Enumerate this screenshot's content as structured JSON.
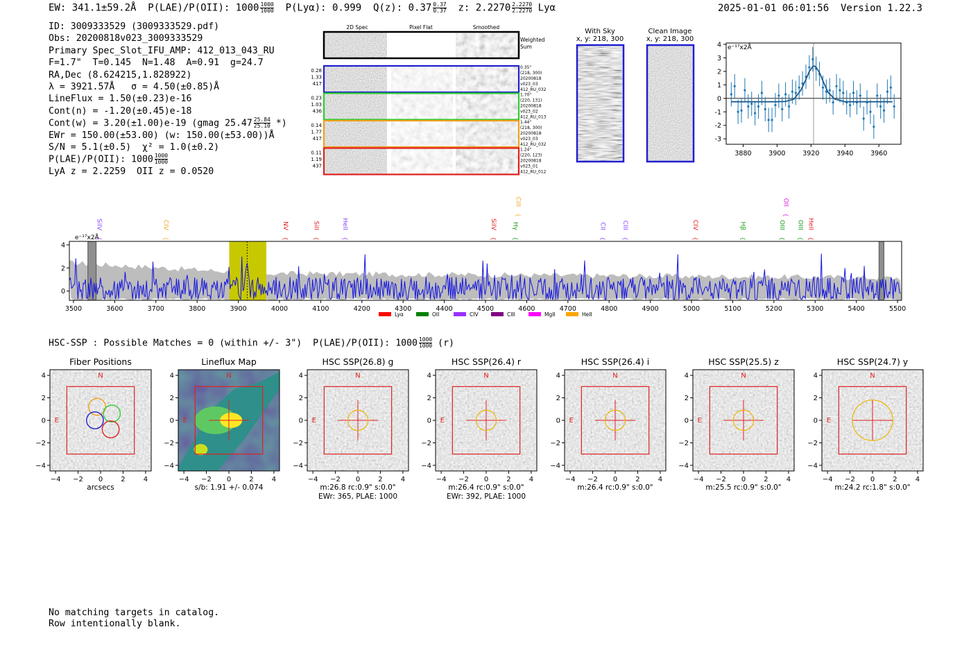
{
  "header": {
    "ew": "EW: 341.1±59.2Å",
    "plae_label": "P(LAE)/P(OII): 1000",
    "plae_num": "1000",
    "plae_den": "1000",
    "plya": "P(Lyα): 0.999",
    "qz": "Q(z): 0.37",
    "qz_num": "0.37",
    "qz_den": "0.37",
    "z": "z: 2.2270",
    "z_num": "2.2270",
    "z_den": "2.2270",
    "z_line": "Lyα",
    "timestamp": "2025-01-01 06:01:56  Version 1.22.3"
  },
  "info": {
    "id": "ID: 3009333529 (3009333529.pdf)",
    "obs": "Obs: 20200818v023_3009333529",
    "primary": "Primary Spec_Slot_IFU_AMP: 412_013_043_RU",
    "fiber": "F=1.7\"  T=0.145  N=1.48  A=0.91  g=24.7",
    "radec": "RA,Dec (8.624215,1.828922)",
    "lambda": "λ = 3921.57Å   σ = 4.50(±0.85)Å",
    "lineflux": "LineFlux = 1.50(±0.23)e-16",
    "contn": "Cont(n) = -1.20(±0.45)e-18",
    "contw": "Cont(w) = 3.20(±1.00)e-19 (gmag 25.47",
    "contw_num": "25.84",
    "contw_den": "25.10",
    "contw_end": "*)",
    "ewr": "EWr = 150.00(±53.00) (w: 150.00(±53.00))Å",
    "sn": "S/N = 5.1(±0.5)  χ² = 1.0(±0.2)",
    "plae": "P(LAE)/P(OII): 1000",
    "plae_num": "1000",
    "plae_den": "1000",
    "z": "LyA z = 2.2259  OII z = 0.0520"
  },
  "cutouts": {
    "col_2d": "2D Spec",
    "col_flat": "Pixel Flat",
    "col_smooth": "Smoothed",
    "weighted": "Weighted",
    "sum": "Sum",
    "rows": [
      {
        "w1": "0.28",
        "w2": "1.33",
        "w3": "417",
        "r1": "0.35\"",
        "r2": "(218, 300)",
        "r3": "20200818",
        "r4": "v023_03",
        "r5": "412_RU_032",
        "color": "#1f1fd0"
      },
      {
        "w1": "0.23",
        "w2": "1.03",
        "w3": "436",
        "r1": "1.70\"",
        "r2": "(220, 131)",
        "r3": "20200818",
        "r4": "v023_02",
        "r5": "412_RU_013",
        "color": "#2ecc2e"
      },
      {
        "w1": "0.14",
        "w2": "1.77",
        "w3": "417",
        "r1": "1.44\"",
        "r2": "(218, 300)",
        "r3": "20200818",
        "r4": "v023_03",
        "r5": "412_RU_032",
        "color": "#f0a020"
      },
      {
        "w1": "0.11",
        "w2": "1.19",
        "w3": "437",
        "r1": "1.24\"",
        "r2": "(220, 123)",
        "r3": "20200818",
        "r4": "v023_01",
        "r5": "412_RU_012",
        "color": "#e02020"
      }
    ],
    "withsky_title": "With Sky",
    "withsky_coords": "x, y: 218, 300",
    "clean_title": "Clean Image",
    "clean_coords": "x, y: 218, 300"
  },
  "chart_data": [
    {
      "type": "line",
      "title": "Emission line zoom",
      "ylabel": "e⁻¹⁷x2Å",
      "xlim": [
        3870,
        3973
      ],
      "ylim": [
        -3.4,
        4.1
      ],
      "xticks": [
        3880,
        3900,
        3920,
        3940,
        3960
      ],
      "yticks": [
        -3,
        -2,
        -1,
        0,
        1,
        2,
        3,
        4
      ],
      "series": [
        {
          "name": "data",
          "style": "errorbar",
          "x": [
            3873,
            3875,
            3877,
            3879,
            3881,
            3883,
            3885,
            3887,
            3889,
            3891,
            3893,
            3895,
            3897,
            3899,
            3901,
            3903,
            3905,
            3907,
            3909,
            3911,
            3913,
            3915,
            3917,
            3919,
            3921,
            3923,
            3925,
            3927,
            3929,
            3931,
            3933,
            3935,
            3937,
            3939,
            3941,
            3943,
            3945,
            3947,
            3949,
            3951,
            3953,
            3955,
            3957,
            3959,
            3961,
            3963,
            3965,
            3967,
            3969
          ],
          "y": [
            0.3,
            0.9,
            -1.0,
            -0.9,
            0.6,
            -0.6,
            -0.4,
            -1.1,
            -0.6,
            0.4,
            -0.8,
            -1.6,
            -1.6,
            -0.5,
            0.2,
            -0.8,
            0.3,
            -0.6,
            0.5,
            0.4,
            0.8,
            1.1,
            1.6,
            2.3,
            2.9,
            2.2,
            1.8,
            0.8,
            0.5,
            0.6,
            -0.3,
            0.9,
            0.6,
            0.4,
            -0.3,
            -0.5,
            0.4,
            -0.3,
            0.2,
            -1.5,
            -0.3,
            -1.0,
            -2.1,
            0.2,
            -0.6,
            -0.9,
            0.5,
            0.8,
            -0.6
          ]
        },
        {
          "name": "fit",
          "style": "line",
          "x": [
            3873,
            3900,
            3905,
            3910,
            3914,
            3917,
            3919,
            3921,
            3922,
            3923,
            3925,
            3927,
            3930,
            3934,
            3940,
            3968
          ],
          "y": [
            -0.25,
            -0.25,
            -0.23,
            -0.05,
            0.6,
            1.4,
            2.0,
            2.35,
            2.4,
            2.3,
            1.9,
            1.3,
            0.45,
            -0.05,
            -0.25,
            -0.25
          ]
        }
      ]
    },
    {
      "type": "line",
      "title": "Full spectrum",
      "ylabel": "e⁻¹⁷x2Å",
      "xlim": [
        3490,
        5510
      ],
      "ylim": [
        -0.8,
        4.3
      ],
      "xticks": [
        3500,
        3600,
        3700,
        3800,
        3900,
        4000,
        4100,
        4200,
        4300,
        4400,
        4500,
        4600,
        4700,
        4800,
        4900,
        5000,
        5100,
        5200,
        5300,
        5400,
        5500
      ],
      "yticks": [
        0,
        2,
        4
      ],
      "highlight_range": [
        3878,
        3968
      ],
      "masked_ranges": [
        [
          3535,
          3555
        ],
        [
          5455,
          5467
        ]
      ],
      "line_markers": [
        {
          "label": "SiIV",
          "x": 3553,
          "color": "#8e44ff"
        },
        {
          "label": "CIV",
          "x": 3715,
          "color": "#f5a623"
        },
        {
          "label": "NV",
          "x": 4005,
          "color": "#e02020"
        },
        {
          "label": "SiII",
          "x": 4080,
          "color": "#e02020"
        },
        {
          "label": "HeII",
          "x": 4150,
          "color": "#8e44ff"
        },
        {
          "label": "SiIV",
          "x": 4510,
          "color": "#e02020"
        },
        {
          "label": "CIII",
          "x": 4570,
          "color": "#f5a623"
        },
        {
          "label": "Hγ",
          "x": 4563,
          "color": "#1a9c1a"
        },
        {
          "label": "CII",
          "x": 4775,
          "color": "#8e44ff"
        },
        {
          "label": "CIII",
          "x": 4830,
          "color": "#8e44ff"
        },
        {
          "label": "CIV",
          "x": 5000,
          "color": "#e02020"
        },
        {
          "label": "Hβ",
          "x": 5115,
          "color": "#1a9c1a"
        },
        {
          "label": "OII",
          "x": 5220,
          "color": "#e020e0"
        },
        {
          "label": "OIII",
          "x": 5210,
          "color": "#1a9c1a"
        },
        {
          "label": "OIII",
          "x": 5255,
          "color": "#1a9c1a"
        },
        {
          "label": "HeII",
          "x": 5280,
          "color": "#e02020"
        }
      ],
      "legend": [
        {
          "label": "Lyα",
          "color": "#ff0000"
        },
        {
          "label": "OII",
          "color": "#008000"
        },
        {
          "label": "CIV",
          "color": "#9b30ff"
        },
        {
          "label": "CIII",
          "color": "#800080"
        },
        {
          "label": "MgII",
          "color": "#ff00ff"
        },
        {
          "label": "HeII",
          "color": "#ffa500"
        }
      ]
    }
  ],
  "hsc": {
    "line_label": "HSC-SSP : Possible Matches = 0 (within +/- 3\")  P(LAE)/P(OII): 1000",
    "line_num": "1000",
    "line_den": "1000",
    "line_end": "(r)",
    "panels": [
      {
        "title": "Fiber Positions",
        "cap1": "arcsecs",
        "cap2": "",
        "kind": "fiber"
      },
      {
        "title": "Lineflux Map",
        "cap1": "s/b: 1.91 +/- 0.074",
        "cap2": "",
        "kind": "flux"
      },
      {
        "title": "HSC SSP(26.8) g",
        "cap1": "m:26.8 rc:0.9\"  s:0.0\"",
        "cap2": "EWr: 365, PLAE: 1000",
        "kind": "img"
      },
      {
        "title": "HSC SSP(26.4) r",
        "cap1": "m:26.4 rc:0.9\"  s:0.0\"",
        "cap2": "EWr: 392, PLAE: 1000",
        "kind": "img"
      },
      {
        "title": "HSC SSP(26.4) i",
        "cap1": "m:26.4 rc:0.9\"  s:0.0\"",
        "cap2": "",
        "kind": "img"
      },
      {
        "title": "HSC SSP(25.5) z",
        "cap1": "m:25.5 rc:0.9\"  s:0.0\"",
        "cap2": "",
        "kind": "img"
      },
      {
        "title": "HSC SSP(24.7) y",
        "cap1": "m:24.2 rc:1.8\"  s:0.0\"",
        "cap2": "",
        "kind": "img"
      }
    ],
    "axis_ticks": [
      "−4",
      "−2",
      "0",
      "2",
      "4"
    ],
    "n_label": "N",
    "e_label": "E"
  },
  "footer": {
    "line1": "No matching targets in catalog.",
    "line2": "Row intentionally blank."
  }
}
